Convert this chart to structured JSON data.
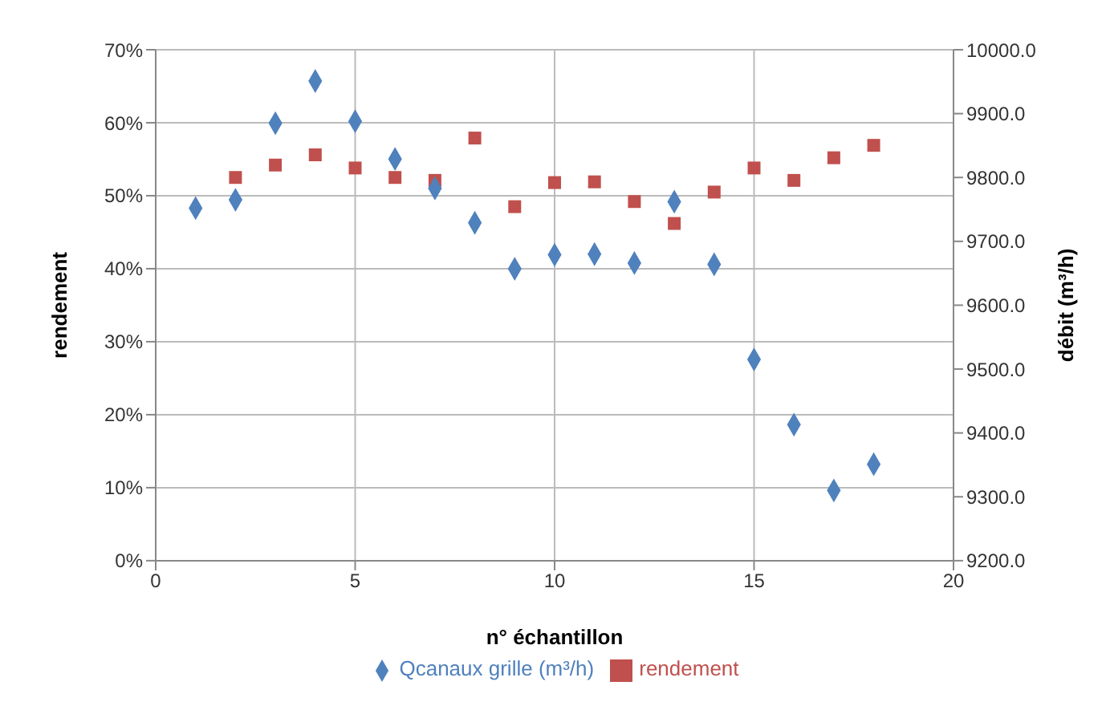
{
  "chart_data": {
    "type": "scatter",
    "xlabel": "n° échantillon",
    "ylabel": "rendement",
    "y2label": "débit (m³/h)",
    "xlim": [
      0,
      20
    ],
    "xticks": [
      0,
      5,
      10,
      15,
      20
    ],
    "ylim": [
      0,
      70
    ],
    "yticks": [
      {
        "value": 0,
        "label": "0%"
      },
      {
        "value": 10,
        "label": "10%"
      },
      {
        "value": 20,
        "label": "20%"
      },
      {
        "value": 30,
        "label": "30%"
      },
      {
        "value": 40,
        "label": "40%"
      },
      {
        "value": 50,
        "label": "50%"
      },
      {
        "value": 60,
        "label": "60%"
      },
      {
        "value": 70,
        "label": "70%"
      }
    ],
    "y2lim": [
      9200,
      10000
    ],
    "y2ticks": [
      {
        "value": 9200,
        "label": "9200.0"
      },
      {
        "value": 9300,
        "label": "9300.0"
      },
      {
        "value": 9400,
        "label": "9400.0"
      },
      {
        "value": 9500,
        "label": "9500.0"
      },
      {
        "value": 9600,
        "label": "9600.0"
      },
      {
        "value": 9700,
        "label": "9700.0"
      },
      {
        "value": 9800,
        "label": "9800.0"
      },
      {
        "value": 9900,
        "label": "9900.0"
      },
      {
        "value": 10000,
        "label": "10000.0"
      }
    ],
    "grid": true,
    "legend": "bottom",
    "series": [
      {
        "name": "rendement",
        "color": "#c0504d",
        "marker": "square",
        "x": [
          2,
          3,
          4,
          5,
          6,
          7,
          8,
          9,
          10,
          11,
          12,
          13,
          14,
          15,
          16,
          17,
          18
        ],
        "values": [
          52.5,
          54.2,
          55.6,
          53.8,
          52.5,
          52.1,
          57.9,
          48.5,
          51.8,
          51.9,
          49.2,
          46.2,
          50.5,
          53.8,
          52.1,
          55.2,
          56.9
        ]
      },
      {
        "name": "Qcanaux grille (m³/h)",
        "color": "#4f81bd",
        "marker": "diamond",
        "axis": "y2",
        "x": [
          1,
          2,
          3,
          4,
          5,
          6,
          7,
          8,
          9,
          10,
          11,
          12,
          13,
          14,
          15,
          16,
          17,
          18
        ],
        "values": [
          9752,
          9765,
          9885,
          9951,
          9888,
          9829,
          9783,
          9729,
          9657,
          9679,
          9680,
          9666,
          9762,
          9664,
          9515,
          9413,
          9310,
          9351
        ]
      }
    ]
  }
}
